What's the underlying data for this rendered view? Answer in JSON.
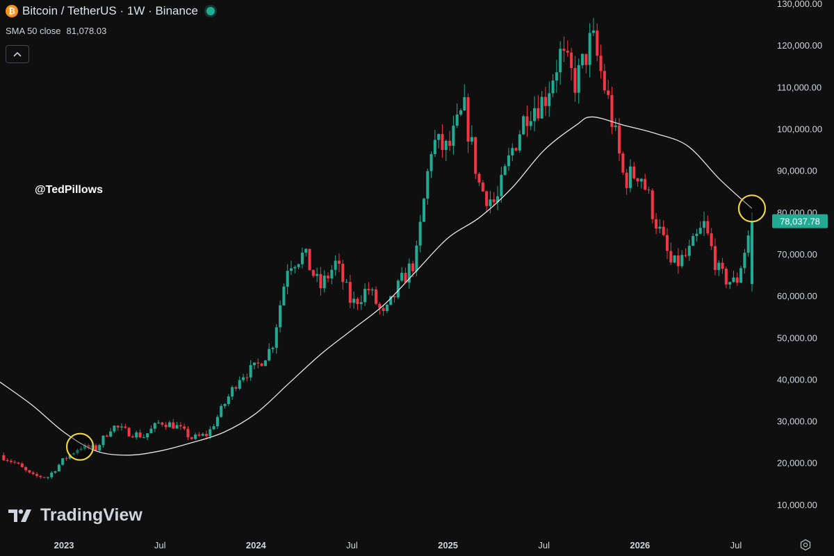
{
  "header": {
    "symbol_icon": "bitcoin-icon",
    "title": "Bitcoin / TetherUS · 1W · Binance",
    "sma_label": "SMA 50 close",
    "sma_value": "81,078.03"
  },
  "watermark": {
    "handle": "@TedPillows",
    "brand": "TradingView"
  },
  "price_tag": {
    "label": "78,037.78",
    "value": 78037.78,
    "color": "#22ab94"
  },
  "colors": {
    "up": "#22ab94",
    "down": "#f23645",
    "sma": "#e8e8e8",
    "highlight": "#f0d441",
    "background": "#0f0f0f"
  },
  "chart_data": {
    "type": "candlestick",
    "title": "Bitcoin / TetherUS · 1W · Binance",
    "ylim": [
      3000,
      131000
    ],
    "y_ticks": [
      10000,
      20000,
      30000,
      40000,
      50000,
      60000,
      70000,
      80000,
      90000,
      100000,
      110000,
      120000,
      130000
    ],
    "y_tick_labels": [
      "10,000.00",
      "20,000.00",
      "30,000.00",
      "40,000.00",
      "50,000.00",
      "60,000.00",
      "70,000.00",
      "80,000.00",
      "90,000.00",
      "100,000.00",
      "110,000.00",
      "120,000.00",
      "130,000.00"
    ],
    "x_range": [
      "2022-09",
      "2026-09"
    ],
    "x_ticks": [
      {
        "label": "2023",
        "date": "2023-01",
        "bold": true
      },
      {
        "label": "Jul",
        "date": "2023-07",
        "bold": false
      },
      {
        "label": "2024",
        "date": "2024-01",
        "bold": true
      },
      {
        "label": "Jul",
        "date": "2024-07",
        "bold": false
      },
      {
        "label": "2025",
        "date": "2025-01",
        "bold": true
      },
      {
        "label": "Jul",
        "date": "2025-07",
        "bold": false
      },
      {
        "label": "2026",
        "date": "2026-01",
        "bold": true
      },
      {
        "label": "Jul",
        "date": "2026-07",
        "bold": false
      }
    ],
    "price_path": [
      [
        "2022-09",
        22000
      ],
      [
        "2022-10",
        20000
      ],
      [
        "2022-11",
        17000
      ],
      [
        "2022-12",
        16800
      ],
      [
        "2023-01",
        21000
      ],
      [
        "2023-02",
        24000
      ],
      [
        "2023-03",
        23500
      ],
      [
        "2023-04",
        29000
      ],
      [
        "2023-05",
        27500
      ],
      [
        "2023-06",
        26500
      ],
      [
        "2023-07",
        30000
      ],
      [
        "2023-08",
        29000
      ],
      [
        "2023-09",
        26000
      ],
      [
        "2023-10",
        27000
      ],
      [
        "2023-11",
        34000
      ],
      [
        "2023-12",
        41000
      ],
      [
        "2024-01",
        43000
      ],
      [
        "2024-02",
        48000
      ],
      [
        "2024-03",
        68000
      ],
      [
        "2024-04",
        70000
      ],
      [
        "2024-05",
        62000
      ],
      [
        "2024-06",
        68000
      ],
      [
        "2024-07",
        58000
      ],
      [
        "2024-08",
        62000
      ],
      [
        "2024-09",
        55000
      ],
      [
        "2024-10",
        63000
      ],
      [
        "2024-11",
        69000
      ],
      [
        "2024-12",
        97000
      ],
      [
        "2025-01",
        95000
      ],
      [
        "2025-02",
        105000
      ],
      [
        "2025-03",
        86000
      ],
      [
        "2025-04",
        82000
      ],
      [
        "2025-05",
        95000
      ],
      [
        "2025-06",
        105000
      ],
      [
        "2025-07",
        107000
      ],
      [
        "2025-08",
        118000
      ],
      [
        "2025-09",
        111000
      ],
      [
        "2025-10",
        122000
      ],
      [
        "2025-11",
        107000
      ],
      [
        "2025-12",
        88000
      ],
      [
        "2026-01",
        90000
      ],
      [
        "2026-02",
        78000
      ],
      [
        "2026-03",
        67000
      ],
      [
        "2026-04",
        70000
      ],
      [
        "2026-05",
        77000
      ],
      [
        "2026-06",
        65000
      ],
      [
        "2026-07",
        63000
      ],
      [
        "2026-08",
        78037.78
      ]
    ],
    "sma50_path": [
      [
        "2022-09",
        39500
      ],
      [
        "2022-11",
        34000
      ],
      [
        "2023-01",
        27500
      ],
      [
        "2023-03",
        23000
      ],
      [
        "2023-05",
        22000
      ],
      [
        "2023-07",
        23000
      ],
      [
        "2023-09",
        25000
      ],
      [
        "2023-11",
        27500
      ],
      [
        "2024-01",
        32000
      ],
      [
        "2024-03",
        39000
      ],
      [
        "2024-05",
        46000
      ],
      [
        "2024-07",
        52000
      ],
      [
        "2024-09",
        58000
      ],
      [
        "2024-11",
        66000
      ],
      [
        "2025-01",
        74000
      ],
      [
        "2025-03",
        79000
      ],
      [
        "2025-05",
        86000
      ],
      [
        "2025-07",
        95000
      ],
      [
        "2025-09",
        101000
      ],
      [
        "2025-10",
        103000
      ],
      [
        "2025-12",
        101000
      ],
      [
        "2026-02",
        99000
      ],
      [
        "2026-04",
        96000
      ],
      [
        "2026-06",
        88000
      ],
      [
        "2026-08",
        81078.03
      ]
    ],
    "highlights": [
      {
        "date": "2023-02",
        "price": 24000
      },
      {
        "date": "2026-08",
        "price": 81078.03
      }
    ]
  }
}
